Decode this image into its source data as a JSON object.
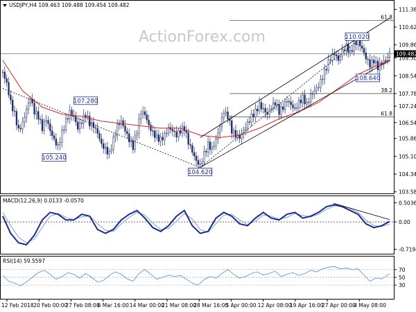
{
  "watermark": "ActionForex.com",
  "chart_data": [
    {
      "type": "candlestick",
      "header": "USDJPY,H4  109.463 109.488 109.454 109.482",
      "current_price": "109.482",
      "ylim": [
        103.6,
        111.6
      ],
      "y_ticks": [
        "111.380",
        "110.620",
        "109.860",
        "109.300",
        "108.540",
        "107.780",
        "107.240",
        "106.540",
        "105.860",
        "105.100",
        "104.340",
        "103.580"
      ],
      "x_ticks": [
        "12 Feb 2018",
        "20 Feb 00:00",
        "27 Feb 08:00",
        "6 Mar 16:00",
        "14 Mar 00:00",
        "21 Mar 08:00",
        "28 Mar 16:00",
        "5 Apr 00:00",
        "12 Apr 08:00",
        "19 Apr 16:00",
        "27 Apr 00:00",
        "4 May 08:00"
      ],
      "close_path": [
        [
          0,
          108.7
        ],
        [
          4,
          108.2
        ],
        [
          8,
          107.4
        ],
        [
          12,
          106.9
        ],
        [
          16,
          106.2
        ],
        [
          20,
          106.5
        ],
        [
          24,
          107.1
        ],
        [
          28,
          107.6
        ],
        [
          32,
          107.0
        ],
        [
          36,
          106.8
        ],
        [
          40,
          106.3
        ],
        [
          44,
          106.7
        ],
        [
          48,
          106.2
        ],
        [
          52,
          105.8
        ],
        [
          56,
          105.5
        ],
        [
          60,
          106.1
        ],
        [
          64,
          106.6
        ],
        [
          68,
          107.0
        ],
        [
          72,
          106.8
        ],
        [
          76,
          106.3
        ],
        [
          80,
          106.6
        ],
        [
          84,
          106.9
        ],
        [
          88,
          106.5
        ],
        [
          92,
          106.4
        ],
        [
          96,
          106.1
        ],
        [
          100,
          105.6
        ],
        [
          104,
          105.4
        ],
        [
          108,
          105.2
        ],
        [
          112,
          105.8
        ],
        [
          116,
          106.4
        ],
        [
          120,
          106.6
        ],
        [
          124,
          106.2
        ],
        [
          128,
          105.8
        ],
        [
          132,
          105.5
        ],
        [
          136,
          106.2
        ],
        [
          140,
          107.0
        ],
        [
          144,
          106.9
        ],
        [
          148,
          106.4
        ],
        [
          152,
          106.1
        ],
        [
          156,
          105.9
        ],
        [
          160,
          105.8
        ],
        [
          164,
          106.0
        ],
        [
          168,
          106.3
        ],
        [
          172,
          106.2
        ],
        [
          176,
          106.0
        ],
        [
          180,
          106.2
        ],
        [
          184,
          106.3
        ],
        [
          188,
          105.7
        ],
        [
          192,
          105.3
        ],
        [
          196,
          104.9
        ],
        [
          200,
          104.7
        ],
        [
          204,
          105.2
        ],
        [
          208,
          105.6
        ],
        [
          212,
          105.4
        ],
        [
          216,
          105.8
        ],
        [
          220,
          106.4
        ],
        [
          224,
          107.0
        ],
        [
          228,
          106.8
        ],
        [
          232,
          106.2
        ],
        [
          236,
          106.0
        ],
        [
          240,
          105.9
        ],
        [
          244,
          106.2
        ],
        [
          248,
          106.5
        ],
        [
          252,
          106.8
        ],
        [
          256,
          107.0
        ],
        [
          260,
          107.3
        ],
        [
          264,
          107.1
        ],
        [
          268,
          106.9
        ],
        [
          272,
          107.2
        ],
        [
          276,
          107.4
        ],
        [
          280,
          107.0
        ],
        [
          284,
          107.2
        ],
        [
          288,
          107.5
        ],
        [
          292,
          107.3
        ],
        [
          296,
          107.1
        ],
        [
          300,
          107.4
        ],
        [
          304,
          107.6
        ],
        [
          308,
          107.3
        ],
        [
          312,
          107.7
        ],
        [
          316,
          107.9
        ],
        [
          320,
          108.1
        ],
        [
          324,
          108.5
        ],
        [
          328,
          108.9
        ],
        [
          332,
          109.3
        ],
        [
          336,
          109.5
        ],
        [
          340,
          109.2
        ],
        [
          344,
          109.6
        ],
        [
          348,
          109.8
        ],
        [
          352,
          109.5
        ],
        [
          356,
          109.9
        ],
        [
          360,
          110.0
        ],
        [
          364,
          109.7
        ],
        [
          368,
          109.3
        ],
        [
          372,
          109.0
        ],
        [
          376,
          109.2
        ],
        [
          380,
          108.9
        ],
        [
          384,
          109.1
        ],
        [
          388,
          109.2
        ],
        [
          392,
          109.482
        ]
      ],
      "ma": [
        [
          0,
          109.2
        ],
        [
          20,
          107.9
        ],
        [
          40,
          107.2
        ],
        [
          60,
          106.9
        ],
        [
          80,
          106.8
        ],
        [
          100,
          106.6
        ],
        [
          120,
          106.5
        ],
        [
          140,
          106.4
        ],
        [
          160,
          106.3
        ],
        [
          180,
          106.3
        ],
        [
          200,
          106.0
        ],
        [
          220,
          105.9
        ],
        [
          240,
          106.0
        ],
        [
          260,
          106.3
        ],
        [
          280,
          106.7
        ],
        [
          300,
          107.0
        ],
        [
          320,
          107.4
        ],
        [
          340,
          108.0
        ],
        [
          360,
          108.6
        ],
        [
          380,
          109.0
        ],
        [
          392,
          109.2
        ]
      ],
      "annotations": [
        {
          "label": "110.020",
          "x": 359,
          "y": 110.02,
          "box": "above"
        },
        {
          "label": "108.640",
          "x": 370,
          "y": 108.64,
          "box": "below"
        },
        {
          "label": "107.280",
          "x": 84,
          "y": 107.28,
          "box": "above"
        },
        {
          "label": "105.240",
          "x": 52,
          "y": 105.24,
          "box": "below"
        },
        {
          "label": "104.620",
          "x": 200,
          "y": 104.62,
          "box": "below"
        }
      ],
      "fib_levels": [
        {
          "label": "61.8",
          "value": 110.9,
          "x_from": 230
        },
        {
          "label": "38.2",
          "value": 107.78,
          "x_from": 230
        },
        {
          "label": "61.8",
          "value": 106.78,
          "x_from": 230
        }
      ],
      "horizontal_line": 109.48,
      "channel": {
        "lower": [
          [
            200,
            104.62
          ],
          [
            392,
            109.2
          ]
        ],
        "upper": [
          [
            200,
            105.9
          ],
          [
            392,
            111.0
          ]
        ]
      },
      "trendlines": [
        [
          [
            0,
            108.0
          ],
          [
            200,
            104.62
          ]
        ],
        [
          [
            200,
            104.62
          ],
          [
            359,
            110.02
          ]
        ]
      ]
    },
    {
      "type": "line",
      "header": "MACD(12,26,9) 0.0133 -0.0570",
      "y_ticks": [
        "0.5036",
        "0.00",
        "-0.7194"
      ],
      "ylim": [
        -0.8,
        0.62
      ],
      "macd": [
        [
          0,
          0.15
        ],
        [
          8,
          -0.3
        ],
        [
          16,
          -0.55
        ],
        [
          24,
          -0.6
        ],
        [
          32,
          -0.35
        ],
        [
          40,
          0.05
        ],
        [
          48,
          0.25
        ],
        [
          56,
          0.2
        ],
        [
          64,
          0.05
        ],
        [
          72,
          0.05
        ],
        [
          80,
          0.2
        ],
        [
          88,
          0.15
        ],
        [
          96,
          -0.2
        ],
        [
          104,
          -0.3
        ],
        [
          112,
          -0.2
        ],
        [
          120,
          0.05
        ],
        [
          128,
          0.2
        ],
        [
          136,
          0.3
        ],
        [
          144,
          0.1
        ],
        [
          152,
          -0.15
        ],
        [
          160,
          -0.25
        ],
        [
          168,
          -0.1
        ],
        [
          176,
          0.15
        ],
        [
          184,
          0.3
        ],
        [
          192,
          -0.1
        ],
        [
          200,
          -0.3
        ],
        [
          208,
          -0.25
        ],
        [
          216,
          0.1
        ],
        [
          224,
          0.25
        ],
        [
          232,
          0.15
        ],
        [
          240,
          -0.05
        ],
        [
          248,
          -0.1
        ],
        [
          256,
          0.1
        ],
        [
          264,
          0.25
        ],
        [
          272,
          0.1
        ],
        [
          280,
          0.05
        ],
        [
          288,
          0.2
        ],
        [
          296,
          0.25
        ],
        [
          304,
          0.1
        ],
        [
          312,
          0.15
        ],
        [
          320,
          0.25
        ],
        [
          328,
          0.4
        ],
        [
          336,
          0.45
        ],
        [
          344,
          0.4
        ],
        [
          352,
          0.3
        ],
        [
          360,
          0.2
        ],
        [
          368,
          -0.05
        ],
        [
          376,
          -0.15
        ],
        [
          384,
          -0.1
        ],
        [
          392,
          0.0133
        ]
      ],
      "signal": [
        [
          0,
          0.25
        ],
        [
          8,
          -0.1
        ],
        [
          16,
          -0.4
        ],
        [
          24,
          -0.55
        ],
        [
          32,
          -0.45
        ],
        [
          40,
          -0.15
        ],
        [
          48,
          0.15
        ],
        [
          56,
          0.22
        ],
        [
          64,
          0.12
        ],
        [
          72,
          0.06
        ],
        [
          80,
          0.13
        ],
        [
          88,
          0.16
        ],
        [
          96,
          -0.05
        ],
        [
          104,
          -0.22
        ],
        [
          112,
          -0.25
        ],
        [
          120,
          -0.05
        ],
        [
          128,
          0.12
        ],
        [
          136,
          0.25
        ],
        [
          144,
          0.18
        ],
        [
          152,
          -0.03
        ],
        [
          160,
          -0.2
        ],
        [
          168,
          -0.17
        ],
        [
          176,
          0.02
        ],
        [
          184,
          0.22
        ],
        [
          192,
          0.08
        ],
        [
          200,
          -0.2
        ],
        [
          208,
          -0.27
        ],
        [
          216,
          -0.05
        ],
        [
          224,
          0.18
        ],
        [
          232,
          0.2
        ],
        [
          240,
          0.05
        ],
        [
          248,
          -0.07
        ],
        [
          256,
          0.02
        ],
        [
          264,
          0.18
        ],
        [
          272,
          0.15
        ],
        [
          280,
          0.07
        ],
        [
          288,
          0.12
        ],
        [
          296,
          0.22
        ],
        [
          304,
          0.17
        ],
        [
          312,
          0.13
        ],
        [
          320,
          0.2
        ],
        [
          328,
          0.33
        ],
        [
          336,
          0.42
        ],
        [
          344,
          0.42
        ],
        [
          352,
          0.35
        ],
        [
          360,
          0.25
        ],
        [
          368,
          0.05
        ],
        [
          376,
          -0.1
        ],
        [
          384,
          -0.12
        ],
        [
          392,
          -0.057
        ]
      ],
      "trendline": [
        [
          335,
          0.49
        ],
        [
          392,
          0.06
        ]
      ]
    },
    {
      "type": "line",
      "header": "RSI(14) 59.5597",
      "y_ticks": [
        "70",
        "50",
        "30"
      ],
      "ylim": [
        0,
        100
      ],
      "rsi": [
        [
          0,
          55
        ],
        [
          6,
          40
        ],
        [
          12,
          35
        ],
        [
          18,
          28
        ],
        [
          24,
          38
        ],
        [
          30,
          50
        ],
        [
          36,
          62
        ],
        [
          42,
          68
        ],
        [
          48,
          58
        ],
        [
          54,
          45
        ],
        [
          60,
          52
        ],
        [
          66,
          62
        ],
        [
          72,
          58
        ],
        [
          78,
          48
        ],
        [
          84,
          60
        ],
        [
          90,
          50
        ],
        [
          96,
          38
        ],
        [
          102,
          42
        ],
        [
          108,
          55
        ],
        [
          114,
          64
        ],
        [
          120,
          58
        ],
        [
          126,
          46
        ],
        [
          132,
          40
        ],
        [
          138,
          60
        ],
        [
          144,
          70
        ],
        [
          150,
          58
        ],
        [
          156,
          45
        ],
        [
          162,
          50
        ],
        [
          168,
          56
        ],
        [
          174,
          52
        ],
        [
          180,
          55
        ],
        [
          186,
          45
        ],
        [
          192,
          35
        ],
        [
          198,
          30
        ],
        [
          204,
          44
        ],
        [
          210,
          52
        ],
        [
          216,
          48
        ],
        [
          222,
          60
        ],
        [
          228,
          70
        ],
        [
          234,
          58
        ],
        [
          240,
          48
        ],
        [
          246,
          52
        ],
        [
          252,
          60
        ],
        [
          258,
          64
        ],
        [
          264,
          56
        ],
        [
          270,
          60
        ],
        [
          276,
          66
        ],
        [
          282,
          52
        ],
        [
          288,
          58
        ],
        [
          294,
          62
        ],
        [
          300,
          55
        ],
        [
          306,
          60
        ],
        [
          312,
          68
        ],
        [
          318,
          64
        ],
        [
          324,
          72
        ],
        [
          330,
          76
        ],
        [
          336,
          78
        ],
        [
          342,
          72
        ],
        [
          348,
          74
        ],
        [
          354,
          70
        ],
        [
          360,
          72
        ],
        [
          366,
          56
        ],
        [
          372,
          40
        ],
        [
          378,
          48
        ],
        [
          384,
          46
        ],
        [
          392,
          59.5597
        ]
      ]
    }
  ]
}
